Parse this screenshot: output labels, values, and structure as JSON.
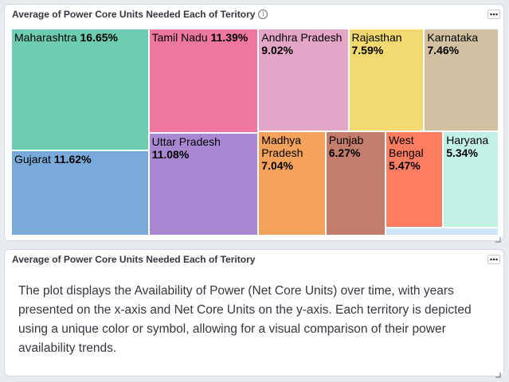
{
  "chart_panel": {
    "title": "Average of Power Core Units Needed Each of Teritory",
    "info_icon": "info-icon",
    "menu_icon": "ellipsis-icon"
  },
  "text_panel": {
    "title": "Average of Power Core Units Needed Each of Teritory",
    "menu_icon": "ellipsis-icon",
    "description": "The plot displays the Availability of Power (Net Core Units) over time, with years presented on the x-axis and Net Core Units on the y-axis. Each territory is depicted using a unique color or symbol, allowing for a visual comparison of their power availability trends."
  },
  "chart_data": {
    "type": "treemap",
    "title": "Average of Power Core Units Needed Each of Teritory",
    "items": [
      {
        "name": "Maharashtra",
        "label": "16.65%",
        "value": 16.65,
        "color": "#6dccb1"
      },
      {
        "name": "Gujarat",
        "label": "11.62%",
        "value": 11.62,
        "color": "#79aad9"
      },
      {
        "name": "Tamil Nadu",
        "label": "11.39%",
        "value": 11.39,
        "color": "#ee789d"
      },
      {
        "name": "Uttar Pradesh",
        "label": "11.08%",
        "value": 11.08,
        "color": "#a987d1"
      },
      {
        "name": "Andhra Pradesh",
        "label": "9.02%",
        "value": 9.02,
        "color": "#e4a6c7"
      },
      {
        "name": "Rajasthan",
        "label": "7.59%",
        "value": 7.59,
        "color": "#f1d86f"
      },
      {
        "name": "Karnataka",
        "label": "7.46%",
        "value": 7.46,
        "color": "#d2c0a0"
      },
      {
        "name": "Madhya Pradesh",
        "label": "7.04%",
        "value": 7.04,
        "color": "#f5a35c"
      },
      {
        "name": "Punjab",
        "label": "6.27%",
        "value": 6.27,
        "color": "#c47c6c"
      },
      {
        "name": "West Bengal",
        "label": "5.47%",
        "value": 5.47,
        "color": "#ff7e62"
      },
      {
        "name": "Haryana",
        "label": "5.34%",
        "value": 5.34,
        "color": "#c2f2e5"
      },
      {
        "name": "",
        "label": "",
        "value": 1.0,
        "color": "#cfe6f7"
      }
    ]
  }
}
